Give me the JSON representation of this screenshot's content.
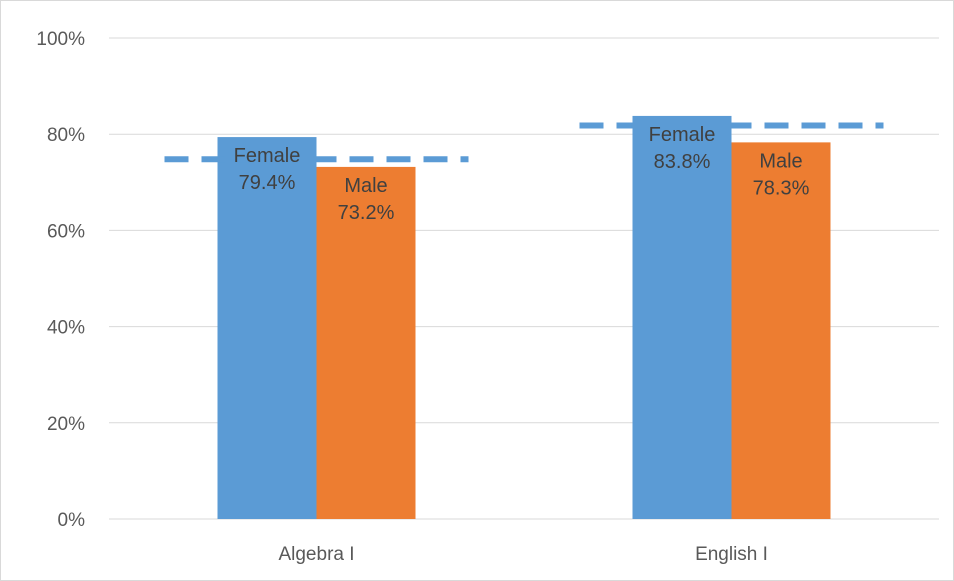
{
  "chart_data": {
    "type": "bar",
    "categories": [
      "Algebra I",
      "English I"
    ],
    "series": [
      {
        "name": "Female",
        "values": [
          79.4,
          83.8
        ],
        "value_labels": [
          "79.4%",
          "83.8%"
        ],
        "color": "#5b9bd5"
      },
      {
        "name": "Male",
        "values": [
          73.2,
          78.3
        ],
        "value_labels": [
          "73.2%",
          "78.3%"
        ],
        "color": "#ed7d31"
      }
    ],
    "reference_lines": {
      "values": [
        74.8,
        81.8
      ],
      "color": "#5b9bd5",
      "style": "dashed"
    },
    "ylim": [
      0,
      100
    ],
    "yticks": [
      0,
      20,
      40,
      60,
      80,
      100
    ],
    "ytick_labels": [
      "0%",
      "20%",
      "40%",
      "60%",
      "80%",
      "100%"
    ],
    "grid": true,
    "legend": "none",
    "title": "",
    "xlabel": "",
    "ylabel": ""
  }
}
